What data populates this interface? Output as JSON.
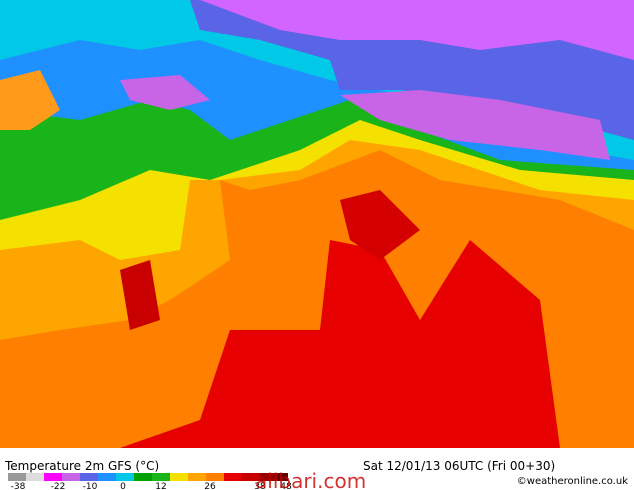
{
  "title": "Temperature 2m GFS (°C)",
  "timestamp": "Sat 12/01/13 06UTC  (Fri 00+30)",
  "credit": "©weatheronline.co.uk",
  "watermark": "alibari.com",
  "colorbar": {
    "ticks": [
      -38,
      -22,
      -10,
      0,
      12,
      26,
      38,
      48
    ]
  }
}
